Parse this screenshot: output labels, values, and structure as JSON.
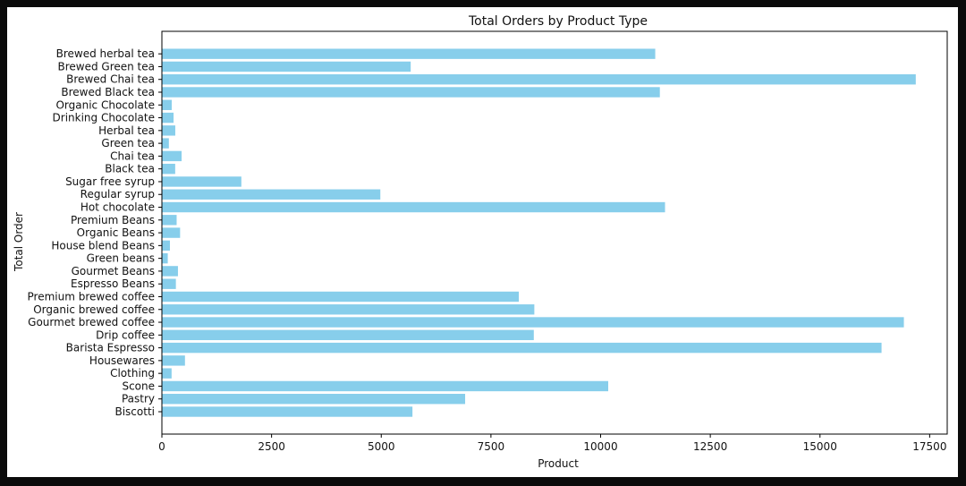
{
  "chart_data": {
    "type": "bar",
    "orientation": "horizontal",
    "title": "Total Orders by Product Type",
    "xlabel": "Product",
    "ylabel": "Total Order",
    "xlim": [
      0,
      17900
    ],
    "xticks": [
      0,
      2500,
      5000,
      7500,
      10000,
      12500,
      15000,
      17500
    ],
    "grid": false,
    "bar_color": "#87CEEB",
    "categories": [
      "Biscotti",
      "Pastry",
      "Scone",
      "Clothing",
      "Housewares",
      "Barista Espresso",
      "Drip coffee",
      "Gourmet brewed coffee",
      "Organic brewed coffee",
      "Premium brewed coffee",
      "Espresso Beans",
      "Gourmet Beans",
      "Green beans",
      "House blend Beans",
      "Organic Beans",
      "Premium Beans",
      "Hot chocolate",
      "Regular syrup",
      "Sugar free syrup",
      "Black tea",
      "Chai tea",
      "Green tea",
      "Herbal tea",
      "Drinking Chocolate",
      "Organic Chocolate",
      "Brewed Black tea",
      "Brewed Chai tea",
      "Brewed Green tea",
      "Brewed herbal tea"
    ],
    "values": [
      5711,
      6912,
      10173,
      221,
      526,
      16403,
      8477,
      16912,
      8489,
      8135,
      319,
      366,
      134,
      183,
      415,
      336,
      11468,
      4979,
      1811,
      303,
      449,
      159,
      305,
      266,
      224,
      11350,
      17183,
      5671,
      11245
    ]
  }
}
